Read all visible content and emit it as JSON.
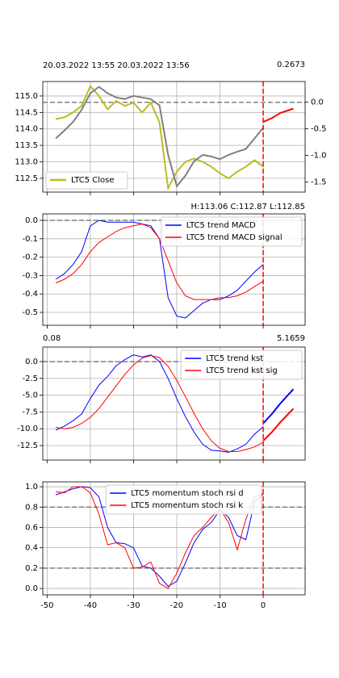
{
  "chart_data": [
    {
      "type": "line",
      "title_left": "20.03.2022 13:55  20.03.2022 13:56",
      "title_right": "0.2673",
      "title_right_color": "#ff0000",
      "xlim": [
        -51,
        9.7
      ],
      "xticks": [
        -50,
        -40,
        -30,
        -20,
        -10,
        0
      ],
      "show_xtick_labels": false,
      "grid": true,
      "ylim": [
        112.08,
        115.44
      ],
      "yticks": [
        {
          "value": 115,
          "label": "115.0"
        },
        114.5,
        {
          "value": 114,
          "label": "114.0"
        },
        113.5,
        {
          "value": 113,
          "label": "113.0"
        },
        112.5
      ],
      "y2lim": [
        -1.69,
        0.39
      ],
      "y2ticks": [
        {
          "value": 0,
          "label": "0.0"
        },
        -0.5,
        {
          "value": -1,
          "label": "-1.0"
        },
        -1.5
      ],
      "hlines": [
        {
          "value": 0,
          "axis": "y2"
        }
      ],
      "vline": 0,
      "legend": "lower left",
      "series": [
        {
          "name": "LTC5 Close",
          "color": "#bcbd22",
          "width": 2,
          "x": [
            -48,
            -46,
            -44,
            -42,
            -40,
            -38,
            -36,
            -34,
            -32,
            -30,
            -28,
            -26,
            -24,
            -22,
            -20,
            -18,
            -16,
            -14,
            -12,
            -10,
            -8,
            -6,
            -4,
            -2,
            0
          ],
          "values": [
            114.3,
            114.35,
            114.5,
            114.7,
            115.3,
            115.0,
            114.6,
            114.85,
            114.7,
            114.8,
            114.5,
            114.8,
            114.2,
            112.2,
            112.7,
            113.0,
            113.1,
            113.0,
            112.85,
            112.65,
            112.5,
            112.7,
            112.85,
            113.05,
            112.85
          ]
        },
        {
          "color": "#808080",
          "width": 2,
          "axis": "y2",
          "x": [
            -48,
            -46,
            -44,
            -42,
            -40,
            -38,
            -36,
            -34,
            -32,
            -30,
            -28,
            -26,
            -24,
            -22,
            -20,
            -18,
            -16,
            -14,
            -12,
            -10,
            -8,
            -6,
            -4,
            -2,
            0
          ],
          "values": [
            -0.68,
            -0.53,
            -0.37,
            -0.14,
            0.17,
            0.29,
            0.17,
            0.09,
            0.06,
            0.12,
            0.09,
            0.06,
            -0.06,
            -0.99,
            -1.58,
            -1.38,
            -1.11,
            -0.99,
            -1.02,
            -1.07,
            -0.99,
            -0.93,
            -0.88,
            -0.68,
            -0.48
          ]
        },
        {
          "color": "#ff0000",
          "width": 2,
          "axis": "y2",
          "x": [
            0,
            2,
            4,
            7
          ],
          "values": [
            -0.37,
            -0.3,
            -0.2,
            -0.12
          ]
        }
      ]
    },
    {
      "type": "line",
      "title_right": "H:113.06 C:112.87 L:112.85",
      "title_right_color": "#000000",
      "xlim": [
        -51,
        9.7
      ],
      "xticks": [
        -50,
        -40,
        -30,
        -20,
        -10,
        0
      ],
      "show_xtick_labels": false,
      "grid": true,
      "ylim": [
        -0.57,
        0.035
      ],
      "yticks": [
        {
          "value": 0,
          "label": "0.0"
        },
        -0.1,
        -0.2,
        -0.3,
        -0.4,
        -0.5
      ],
      "hlines": [
        {
          "value": 0
        }
      ],
      "vline": 0,
      "legend": "upper right",
      "series": [
        {
          "name": "LTC5 trend MACD",
          "color": "#0000ff",
          "width": 1,
          "x": [
            -48,
            -46,
            -44,
            -42,
            -40,
            -38,
            -36,
            -34,
            -32,
            -30,
            -28,
            -26,
            -24,
            -22,
            -20,
            -18,
            -16,
            -14,
            -12,
            -10,
            -8,
            -6,
            -4,
            -2,
            0
          ],
          "values": [
            -0.32,
            -0.29,
            -0.24,
            -0.17,
            -0.03,
            0.0,
            -0.01,
            -0.01,
            -0.01,
            -0.01,
            -0.02,
            -0.03,
            -0.1,
            -0.42,
            -0.52,
            -0.53,
            -0.49,
            -0.45,
            -0.43,
            -0.43,
            -0.41,
            -0.38,
            -0.33,
            -0.28,
            -0.24
          ]
        },
        {
          "name": "LTC5 trend MACD signal",
          "color": "#ff0000",
          "width": 1,
          "x": [
            -48,
            -46,
            -44,
            -42,
            -40,
            -38,
            -36,
            -34,
            -32,
            -30,
            -28,
            -26,
            -24,
            -22,
            -20,
            -18,
            -16,
            -14,
            -12,
            -10,
            -8,
            -6,
            -4,
            -2,
            0
          ],
          "values": [
            -0.34,
            -0.32,
            -0.29,
            -0.24,
            -0.17,
            -0.12,
            -0.09,
            -0.06,
            -0.04,
            -0.03,
            -0.02,
            -0.04,
            -0.1,
            -0.22,
            -0.34,
            -0.41,
            -0.43,
            -0.43,
            -0.43,
            -0.42,
            -0.42,
            -0.41,
            -0.39,
            -0.36,
            -0.33
          ]
        }
      ]
    },
    {
      "type": "line",
      "title_left": "0.08",
      "title_left_color": "#008000",
      "title_right": "5.1659",
      "title_right_color": "#ff0000",
      "xlim": [
        -51,
        9.7
      ],
      "xticks": [
        -50,
        -40,
        -30,
        -20,
        -10,
        0
      ],
      "show_xtick_labels": false,
      "grid": true,
      "ylim": [
        -14.66,
        2.16
      ],
      "yticks": [
        {
          "value": 0,
          "label": "0.0"
        },
        -2.5,
        {
          "value": -5,
          "label": "-5.0"
        },
        -7.5,
        {
          "value": -10,
          "label": "-10.0"
        },
        -12.5
      ],
      "hlines": [
        {
          "value": 0
        }
      ],
      "vline": 0,
      "legend": "upper right",
      "series": [
        {
          "name": "LTC5 trend kst",
          "color": "#0000ff",
          "width": 1,
          "x": [
            -48,
            -46,
            -44,
            -42,
            -40,
            -38,
            -36,
            -34,
            -32,
            -30,
            -28,
            -26,
            -24,
            -22,
            -20,
            -18,
            -16,
            -14,
            -12,
            -10,
            -8,
            -6,
            -4,
            -2,
            0
          ],
          "values": [
            -10.2,
            -9.6,
            -8.8,
            -7.8,
            -5.5,
            -3.5,
            -2.2,
            -0.6,
            0.3,
            1.0,
            0.7,
            1.0,
            0.0,
            -2.5,
            -5.5,
            -8.2,
            -10.5,
            -12.3,
            -13.2,
            -13.3,
            -13.5,
            -13.0,
            -12.3,
            -10.8,
            -9.7
          ]
        },
        {
          "name": "LTC5 trend kst sig",
          "color": "#ff0000",
          "width": 1,
          "x": [
            -48,
            -46,
            -44,
            -42,
            -40,
            -38,
            -36,
            -34,
            -32,
            -30,
            -28,
            -26,
            -24,
            -22,
            -20,
            -18,
            -16,
            -14,
            -12,
            -10,
            -8,
            -6,
            -4,
            -2,
            0
          ],
          "values": [
            -9.8,
            -10.0,
            -9.8,
            -9.2,
            -8.3,
            -7.0,
            -5.3,
            -3.6,
            -1.9,
            -0.5,
            0.5,
            0.9,
            0.6,
            -0.7,
            -2.8,
            -5.2,
            -7.7,
            -10.0,
            -11.8,
            -12.9,
            -13.4,
            -13.4,
            -13.1,
            -12.7,
            -12.0
          ]
        },
        {
          "color": "#0000ff",
          "width": 2,
          "x": [
            0,
            2,
            4,
            7
          ],
          "values": [
            -9.2,
            -7.8,
            -6.2,
            -4.1
          ]
        },
        {
          "color": "#ff0000",
          "width": 2,
          "x": [
            0,
            2,
            4,
            7
          ],
          "values": [
            -11.8,
            -10.5,
            -9.0,
            -7.0
          ]
        }
      ]
    },
    {
      "type": "line",
      "xlim": [
        -51,
        9.7
      ],
      "xticks": [
        -50,
        -40,
        -30,
        -20,
        -10,
        0
      ],
      "show_xtick_labels": true,
      "grid": true,
      "ylim": [
        -0.063,
        1.048
      ],
      "yticks": [
        {
          "value": 0,
          "label": "0.0"
        },
        0.2,
        0.4,
        0.6,
        0.8,
        {
          "value": 1,
          "label": "1.0"
        }
      ],
      "hlines": [
        {
          "value": 0.8
        },
        {
          "value": 0.2
        }
      ],
      "vline": 0,
      "legend": "upper center",
      "series": [
        {
          "name": "LTC5 momentum stoch rsi d",
          "color": "#0000ff",
          "width": 1,
          "x": [
            -48,
            -46,
            -44,
            -42,
            -40,
            -38,
            -36,
            -34,
            -32,
            -30,
            -28,
            -26,
            -24,
            -22,
            -20,
            -18,
            -16,
            -14,
            -12,
            -10,
            -8,
            -6,
            -4,
            -2,
            0
          ],
          "values": [
            0.92,
            0.95,
            0.98,
            1.0,
            0.99,
            0.9,
            0.6,
            0.45,
            0.44,
            0.4,
            0.22,
            0.2,
            0.12,
            0.02,
            0.07,
            0.25,
            0.45,
            0.58,
            0.65,
            0.77,
            0.7,
            0.52,
            0.48,
            0.85,
            0.93
          ]
        },
        {
          "name": "LTC5 momentum stoch rsi k",
          "color": "#ff0000",
          "width": 1,
          "x": [
            -48,
            -46,
            -44,
            -42,
            -40,
            -38,
            -36,
            -34,
            -32,
            -30,
            -28,
            -26,
            -24,
            -22,
            -20,
            -18,
            -16,
            -14,
            -12,
            -10,
            -8,
            -6,
            -4,
            -2,
            0
          ],
          "values": [
            0.95,
            0.94,
            1.0,
            1.0,
            0.94,
            0.73,
            0.43,
            0.45,
            0.4,
            0.2,
            0.21,
            0.26,
            0.05,
            0.0,
            0.15,
            0.35,
            0.52,
            0.6,
            0.7,
            0.78,
            0.65,
            0.38,
            0.68,
            0.9,
            0.93
          ]
        }
      ]
    }
  ]
}
